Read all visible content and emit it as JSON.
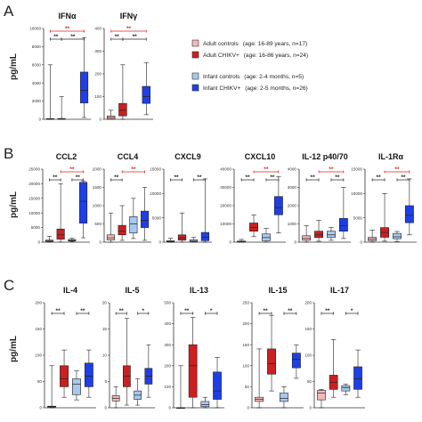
{
  "panel_letters": [
    "A",
    "B",
    "C"
  ],
  "y_axis_label": "pg/mL",
  "colors": {
    "adult_control": "#f4b8b8",
    "adult_chikv": "#cc1f1f",
    "infant_control": "#a9c8ee",
    "infant_chikv": "#1f3fe6",
    "sig_within": "#222222",
    "sig_between": "#e02020"
  },
  "legend": [
    {
      "label": "Adult controls",
      "detail": "(age: 16-89 years, n=17)",
      "color_key": "adult_control"
    },
    {
      "label": "Adult CHIKV+",
      "detail": "(age: 16-86 years, n=24)",
      "color_key": "adult_chikv"
    },
    {
      "label": "Infant controls",
      "detail": "(age: 2-4 months, n=5)",
      "color_key": "infant_control"
    },
    {
      "label": "Infant CHIKV+",
      "detail": "(age: 2-5 months, n=26)",
      "color_key": "infant_chikv"
    }
  ],
  "chart_data": [
    {
      "type": "box",
      "panel": "A",
      "title": "IFNα",
      "ylim": [
        0,
        10000
      ],
      "yticks": [
        "0",
        "2000",
        "4000",
        "6000",
        "8000",
        "10000"
      ],
      "groups": [
        "Adult controls",
        "Adult CHIKV+",
        "Infant controls",
        "Infant CHIKV+"
      ],
      "boxes": [
        [
          0,
          10,
          30,
          80,
          6000
        ],
        [
          0,
          10,
          40,
          90,
          2500
        ],
        null,
        [
          200,
          1800,
          3200,
          5200,
          9000
        ]
      ],
      "significance": [
        {
          "g": [
            0,
            1
          ],
          "label": "**",
          "color": "within"
        },
        {
          "g": [
            1,
            3
          ],
          "label": "**",
          "color": "within"
        },
        {
          "g": [
            0,
            3
          ],
          "label": "**",
          "color": "between"
        }
      ]
    },
    {
      "type": "box",
      "panel": "A",
      "title": "IFNγ",
      "ylim": [
        0,
        400
      ],
      "yticks": [
        "0",
        "100",
        "200",
        "300",
        "400"
      ],
      "groups": [
        "Adult controls",
        "Adult CHIKV+",
        "Infant controls",
        "Infant CHIKV+"
      ],
      "boxes": [
        [
          0,
          1,
          8,
          15,
          40
        ],
        [
          0,
          15,
          40,
          70,
          240
        ],
        null,
        [
          20,
          70,
          100,
          145,
          250
        ]
      ],
      "significance": [
        {
          "g": [
            0,
            1
          ],
          "label": "**",
          "color": "within"
        },
        {
          "g": [
            1,
            3
          ],
          "label": "**",
          "color": "within"
        },
        {
          "g": [
            0,
            3
          ],
          "label": "**",
          "color": "between"
        }
      ]
    },
    {
      "type": "box",
      "panel": "B",
      "title": "CCL2",
      "ylim": [
        0,
        25000
      ],
      "yticks": [
        "0",
        "5000",
        "10000",
        "15000",
        "20000",
        "25000"
      ],
      "groups": [
        "Adult controls",
        "Adult CHIKV+",
        "Infant controls",
        "Infant CHIKV+"
      ],
      "boxes": [
        [
          0,
          200,
          400,
          700,
          2000
        ],
        [
          0,
          1000,
          2500,
          4500,
          20000
        ],
        [
          200,
          400,
          600,
          900,
          1300
        ],
        [
          1500,
          6500,
          14000,
          20500,
          21000
        ]
      ],
      "significance": [
        {
          "g": [
            0,
            1
          ],
          "label": "**",
          "color": "within"
        },
        {
          "g": [
            2,
            3
          ],
          "label": "**",
          "color": "within"
        },
        {
          "g": [
            1,
            3
          ],
          "label": "**",
          "color": "between"
        }
      ]
    },
    {
      "type": "box",
      "panel": "B",
      "title": "CCL4",
      "ylim": [
        0,
        2000
      ],
      "yticks": [
        "0",
        "500",
        "1000",
        "1500",
        "2000"
      ],
      "groups": [
        "Adult controls",
        "Adult CHIKV+",
        "Infant controls",
        "Infant CHIKV+"
      ],
      "boxes": [
        [
          0,
          60,
          120,
          200,
          800
        ],
        [
          50,
          200,
          300,
          460,
          1000
        ],
        [
          100,
          250,
          500,
          700,
          1200
        ],
        [
          50,
          400,
          600,
          850,
          1500
        ]
      ],
      "significance": [
        {
          "g": [
            0,
            1
          ],
          "label": "**",
          "color": "within"
        },
        {
          "g": [
            1,
            3
          ],
          "label": "**",
          "color": "between"
        }
      ]
    },
    {
      "type": "box",
      "panel": "B",
      "title": "CXCL9",
      "ylim": [
        0,
        15000
      ],
      "yticks": [
        "0",
        "5000",
        "10000",
        "15000"
      ],
      "groups": [
        "Adult controls",
        "Adult CHIKV+",
        "Infant controls",
        "Infant CHIKV+"
      ],
      "boxes": [
        [
          0,
          50,
          150,
          300,
          800
        ],
        [
          0,
          400,
          900,
          1500,
          6000
        ],
        [
          0,
          100,
          200,
          500,
          1000
        ],
        [
          0,
          300,
          1000,
          2000,
          13000
        ]
      ],
      "significance": [
        {
          "g": [
            0,
            1
          ],
          "label": "**",
          "color": "within"
        },
        {
          "g": [
            2,
            3
          ],
          "label": "**",
          "color": "within"
        }
      ]
    },
    {
      "type": "box",
      "panel": "B",
      "title": "CXCL10",
      "ylim": [
        0,
        40000
      ],
      "yticks": [
        "0",
        "10000",
        "20000",
        "30000",
        "40000"
      ],
      "groups": [
        "Adult controls",
        "Adult CHIKV+",
        "Infant controls",
        "Infant CHIKV+"
      ],
      "boxes": [
        [
          0,
          100,
          300,
          600,
          1500
        ],
        [
          3000,
          6000,
          8000,
          10500,
          15000
        ],
        [
          0,
          800,
          2500,
          4500,
          7500
        ],
        [
          5000,
          15000,
          19000,
          25000,
          36000
        ]
      ],
      "significance": [
        {
          "g": [
            0,
            1
          ],
          "label": "**",
          "color": "within"
        },
        {
          "g": [
            2,
            3
          ],
          "label": "**",
          "color": "within"
        },
        {
          "g": [
            1,
            3
          ],
          "label": "**",
          "color": "between"
        }
      ]
    },
    {
      "type": "box",
      "panel": "B",
      "title": "IL-12 p40/70",
      "ylim": [
        0,
        4000
      ],
      "yticks": [
        "0",
        "1000",
        "2000",
        "3000",
        "4000"
      ],
      "groups": [
        "Adult controls",
        "Adult CHIKV+",
        "Infant controls",
        "Infant CHIKV+"
      ],
      "boxes": [
        [
          0,
          100,
          200,
          350,
          900
        ],
        [
          50,
          250,
          400,
          600,
          1200
        ],
        [
          100,
          250,
          400,
          600,
          800
        ],
        [
          200,
          600,
          900,
          1300,
          3000
        ]
      ],
      "significance": [
        {
          "g": [
            0,
            1
          ],
          "label": "**",
          "color": "within"
        },
        {
          "g": [
            2,
            3
          ],
          "label": "**",
          "color": "within"
        },
        {
          "g": [
            1,
            3
          ],
          "label": "**",
          "color": "between"
        }
      ]
    },
    {
      "type": "box",
      "panel": "B",
      "title": "IL-1Rα",
      "ylim": [
        0,
        15000
      ],
      "yticks": [
        "0",
        "5000",
        "10000",
        "15000"
      ],
      "groups": [
        "Adult controls",
        "Adult CHIKV+",
        "Infant controls",
        "Infant CHIKV+"
      ],
      "boxes": [
        [
          0,
          300,
          600,
          1000,
          2500
        ],
        [
          200,
          1000,
          2000,
          3000,
          10000
        ],
        [
          100,
          700,
          1100,
          1800,
          2200
        ],
        [
          1500,
          4000,
          5500,
          7500,
          13000
        ]
      ],
      "significance": [
        {
          "g": [
            0,
            1
          ],
          "label": "**",
          "color": "within"
        },
        {
          "g": [
            2,
            3
          ],
          "label": "**",
          "color": "within"
        },
        {
          "g": [
            1,
            3
          ],
          "label": "**",
          "color": "between"
        }
      ]
    },
    {
      "type": "box",
      "panel": "C",
      "title": "IL-4",
      "ylim": [
        0,
        200
      ],
      "yticks": [
        "0",
        "50",
        "100",
        "150",
        "200"
      ],
      "groups": [
        "Adult controls",
        "Adult CHIKV+",
        "Infant controls",
        "Infant CHIKV+"
      ],
      "boxes": [
        [
          0,
          1,
          2,
          3,
          80
        ],
        [
          20,
          40,
          55,
          80,
          110
        ],
        [
          15,
          25,
          45,
          55,
          70
        ],
        [
          20,
          40,
          60,
          85,
          110
        ]
      ],
      "significance": [
        {
          "g": [
            0,
            1
          ],
          "label": "**",
          "color": "within"
        },
        {
          "g": [
            2,
            3
          ],
          "label": "**",
          "color": "within"
        }
      ]
    },
    {
      "type": "box",
      "panel": "C",
      "title": "IL-5",
      "ylim": [
        0,
        20
      ],
      "yticks": [
        "0",
        "5",
        "10",
        "15",
        "20"
      ],
      "groups": [
        "Adult controls",
        "Adult CHIKV+",
        "Infant controls",
        "Infant CHIKV+"
      ],
      "boxes": [
        [
          0,
          1.3,
          1.8,
          2.3,
          4
        ],
        [
          0.5,
          4,
          6,
          8,
          17
        ],
        [
          0.5,
          1.6,
          2.4,
          3.2,
          5.5
        ],
        [
          2,
          4.5,
          6,
          7.5,
          12
        ]
      ],
      "significance": [
        {
          "g": [
            0,
            1
          ],
          "label": "**",
          "color": "within"
        },
        {
          "g": [
            2,
            3
          ],
          "label": "*",
          "color": "within"
        }
      ]
    },
    {
      "type": "box",
      "panel": "C",
      "title": "IL-13",
      "ylim": [
        0,
        500
      ],
      "yticks": [
        "0",
        "100",
        "200",
        "300",
        "400",
        "500"
      ],
      "groups": [
        "Adult controls",
        "Adult CHIKV+",
        "Infant controls",
        "Infant CHIKV+"
      ],
      "boxes": [
        [
          0,
          0,
          0,
          0,
          200
        ],
        [
          0,
          50,
          200,
          300,
          430
        ],
        [
          0,
          5,
          15,
          30,
          50
        ],
        [
          0,
          40,
          80,
          170,
          240
        ]
      ],
      "significance": [
        {
          "g": [
            0,
            1
          ],
          "label": "**",
          "color": "within"
        },
        {
          "g": [
            2,
            3
          ],
          "label": "*",
          "color": "within"
        }
      ]
    },
    {
      "type": "box",
      "panel": "C",
      "title": "IL-15",
      "ylim": [
        0,
        250
      ],
      "yticks": [
        "0",
        "50",
        "100",
        "150",
        "200",
        "250"
      ],
      "groups": [
        "Adult controls",
        "Adult CHIKV+",
        "Infant controls",
        "Infant CHIKV+"
      ],
      "boxes": [
        [
          0,
          15,
          20,
          25,
          140
        ],
        [
          40,
          80,
          105,
          140,
          220
        ],
        [
          0,
          15,
          22,
          35,
          50
        ],
        [
          70,
          95,
          115,
          130,
          150
        ]
      ],
      "significance": [
        {
          "g": [
            0,
            1
          ],
          "label": "**",
          "color": "within"
        },
        {
          "g": [
            2,
            3
          ],
          "label": "**",
          "color": "within"
        }
      ]
    },
    {
      "type": "box",
      "panel": "C",
      "title": "IL-17",
      "ylim": [
        0,
        200
      ],
      "yticks": [
        "0",
        "50",
        "100",
        "150",
        "200"
      ],
      "groups": [
        "Adult controls",
        "Adult CHIKV+",
        "Infant controls",
        "Infant CHIKV+"
      ],
      "boxes": [
        [
          0,
          15,
          28,
          33,
          35
        ],
        [
          20,
          35,
          48,
          62,
          130
        ],
        [
          25,
          32,
          38,
          42,
          45
        ],
        [
          20,
          35,
          55,
          78,
          110
        ]
      ],
      "significance": [
        {
          "g": [
            0,
            1
          ],
          "label": "**",
          "color": "within"
        },
        {
          "g": [
            2,
            3
          ],
          "label": "*",
          "color": "within"
        }
      ]
    }
  ]
}
